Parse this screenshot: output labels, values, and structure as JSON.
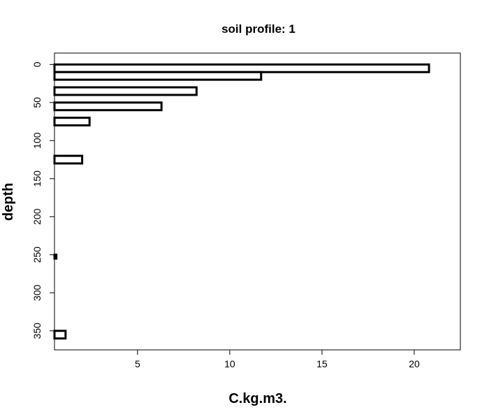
{
  "chart_data": {
    "type": "bar",
    "orientation": "horizontal",
    "title": "soil profile: 1",
    "xlabel": "C.kg.m3.",
    "ylabel": "depth",
    "xlim": [
      0.5,
      22.5
    ],
    "ylim": [
      375,
      -15
    ],
    "y_reversed": true,
    "x_ticks": [
      5,
      10,
      15,
      20
    ],
    "y_ticks": [
      0,
      50,
      100,
      150,
      200,
      250,
      300,
      350
    ],
    "grid": false,
    "bar_fill": "#ffffff",
    "bar_stroke": "#000000",
    "bars": [
      {
        "depth_top": 0,
        "depth_bottom": 10,
        "value": 20.8
      },
      {
        "depth_top": 10,
        "depth_bottom": 20,
        "value": 11.7
      },
      {
        "depth_top": 30,
        "depth_bottom": 40,
        "value": 8.2
      },
      {
        "depth_top": 50,
        "depth_bottom": 60,
        "value": 6.3
      },
      {
        "depth_top": 70,
        "depth_bottom": 80,
        "value": 2.4
      },
      {
        "depth_top": 120,
        "depth_bottom": 130,
        "value": 2.0
      },
      {
        "depth_top": 250,
        "depth_bottom": 255,
        "value": 0.6
      },
      {
        "depth_top": 350,
        "depth_bottom": 360,
        "value": 1.1
      }
    ]
  }
}
